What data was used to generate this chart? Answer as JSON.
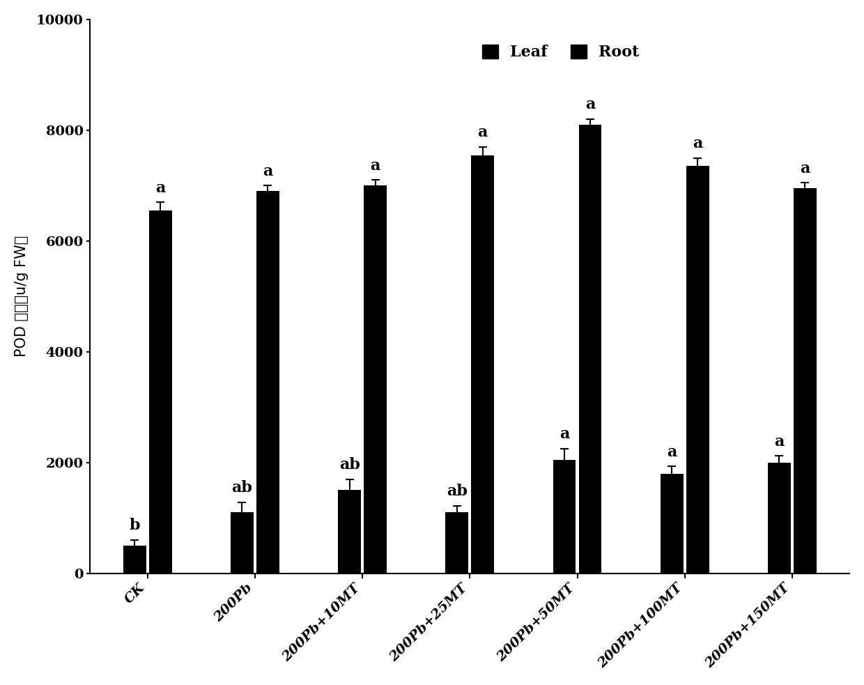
{
  "categories": [
    "CK",
    "200Pb",
    "200Pb+10MT",
    "200Pb+25MT",
    "200Pb+50MT",
    "200Pb+100MT",
    "200Pb+150MT"
  ],
  "leaf_values": [
    500,
    1100,
    1500,
    1100,
    2050,
    1800,
    2000
  ],
  "root_values": [
    6550,
    6900,
    7000,
    7550,
    8100,
    7350,
    6950
  ],
  "leaf_errors": [
    100,
    180,
    200,
    120,
    200,
    130,
    120
  ],
  "root_errors": [
    150,
    100,
    100,
    150,
    100,
    150,
    100
  ],
  "leaf_labels": [
    "b",
    "ab",
    "ab",
    "ab",
    "a",
    "a",
    "a"
  ],
  "root_labels": [
    "a",
    "a",
    "a",
    "a",
    "a",
    "a",
    "a"
  ],
  "bar_color": "#000000",
  "ylabel_cn": "POD 活性（u/g FW）",
  "ylim": [
    0,
    10000
  ],
  "yticks": [
    0,
    2000,
    4000,
    6000,
    8000,
    10000
  ],
  "legend_leaf": "Leaf",
  "legend_root": "Root",
  "bar_width": 0.32,
  "label_fontsize": 15,
  "tick_fontsize": 14,
  "annotation_fontsize": 16,
  "legend_fontsize": 16
}
